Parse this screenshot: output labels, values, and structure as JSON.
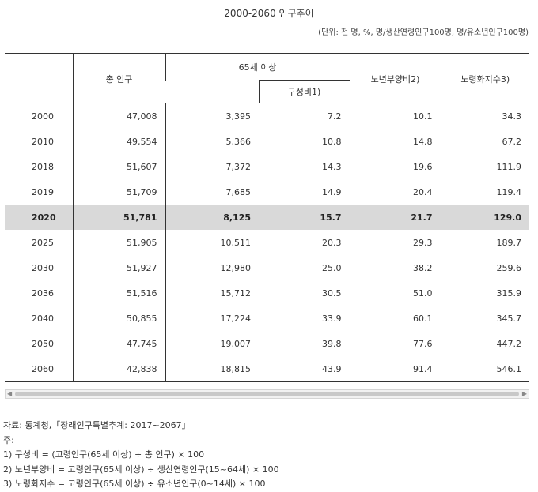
{
  "title": "2000-2060 인구추이",
  "unit_note": "(단위: 천 명, %, 명/생산연령인구100명, 명/유소년인구100명)",
  "table": {
    "headers": {
      "total": "총 인구",
      "over65": "65세 이상",
      "ratio": "구성비1)",
      "dependency": "노년부양비2)",
      "aging": "노령화지수3)"
    },
    "rows": [
      {
        "year": "2000",
        "total": "47,008",
        "over65": "3,395",
        "ratio": "7.2",
        "dependency": "10.1",
        "aging": "34.3"
      },
      {
        "year": "2010",
        "total": "49,554",
        "over65": "5,366",
        "ratio": "10.8",
        "dependency": "14.8",
        "aging": "67.2"
      },
      {
        "year": "2018",
        "total": "51,607",
        "over65": "7,372",
        "ratio": "14.3",
        "dependency": "19.6",
        "aging": "111.9"
      },
      {
        "year": "2019",
        "total": "51,709",
        "over65": "7,685",
        "ratio": "14.9",
        "dependency": "20.4",
        "aging": "119.4"
      },
      {
        "year": "2020",
        "total": "51,781",
        "over65": "8,125",
        "ratio": "15.7",
        "dependency": "21.7",
        "aging": "129.0"
      },
      {
        "year": "2025",
        "total": "51,905",
        "over65": "10,511",
        "ratio": "20.3",
        "dependency": "29.3",
        "aging": "189.7"
      },
      {
        "year": "2030",
        "total": "51,927",
        "over65": "12,980",
        "ratio": "25.0",
        "dependency": "38.2",
        "aging": "259.6"
      },
      {
        "year": "2036",
        "total": "51,516",
        "over65": "15,712",
        "ratio": "30.5",
        "dependency": "51.0",
        "aging": "315.9"
      },
      {
        "year": "2040",
        "total": "50,855",
        "over65": "17,224",
        "ratio": "33.9",
        "dependency": "60.1",
        "aging": "345.7"
      },
      {
        "year": "2050",
        "total": "47,745",
        "over65": "19,007",
        "ratio": "39.8",
        "dependency": "77.6",
        "aging": "447.2"
      },
      {
        "year": "2060",
        "total": "42,838",
        "over65": "18,815",
        "ratio": "43.9",
        "dependency": "91.4",
        "aging": "546.1"
      }
    ],
    "highlight_year": "2020",
    "highlight_color": "#d9d9d9"
  },
  "notes": {
    "source": "자료: 통계청,「장래인구특별추계: 2017~2067」",
    "label": "주:",
    "items": [
      "1) 구성비 = (고령인구(65세 이상) ÷ 총 인구) × 100",
      "2) 노년부양비 = 고령인구(65세 이상) ÷ 생산연령인구(15~64세) × 100",
      "3) 노령화지수 = 고령인구(65세 이상) ÷ 유소년인구(0~14세) × 100"
    ]
  }
}
